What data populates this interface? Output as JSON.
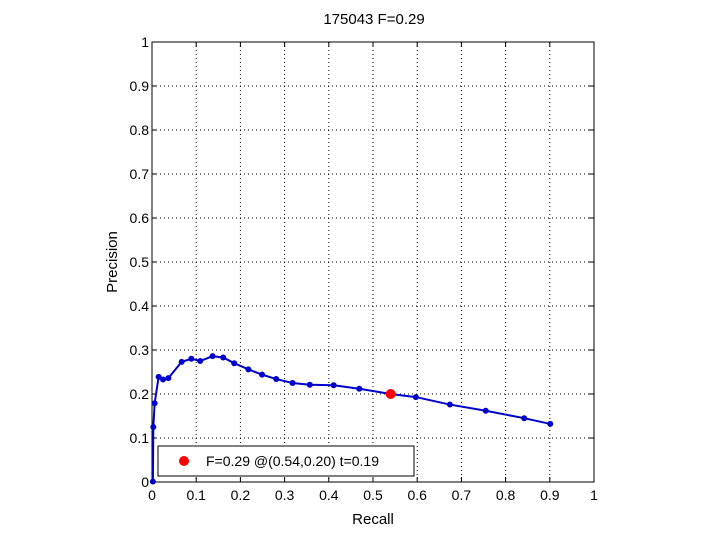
{
  "chart_data": {
    "type": "line",
    "title": "175043 F=0.29",
    "xlabel": "Recall",
    "ylabel": "Precision",
    "xlim": [
      0,
      1
    ],
    "ylim": [
      0,
      1
    ],
    "xticks": [
      "0",
      "0.1",
      "0.2",
      "0.3",
      "0.4",
      "0.5",
      "0.6",
      "0.7",
      "0.8",
      "0.9",
      "1"
    ],
    "yticks": [
      "0",
      "0.1",
      "0.2",
      "0.3",
      "0.4",
      "0.5",
      "0.6",
      "0.7",
      "0.8",
      "0.9",
      "1"
    ],
    "grid": true,
    "series": [
      {
        "color": "#0000cc",
        "points": [
          [
            0.002,
            0.001
          ],
          [
            0.003,
            0.125
          ],
          [
            0.006,
            0.179
          ],
          [
            0.015,
            0.239
          ],
          [
            0.025,
            0.233
          ],
          [
            0.037,
            0.236
          ],
          [
            0.067,
            0.273
          ],
          [
            0.089,
            0.28
          ],
          [
            0.109,
            0.275
          ],
          [
            0.137,
            0.286
          ],
          [
            0.161,
            0.283
          ],
          [
            0.186,
            0.27
          ],
          [
            0.218,
            0.256
          ],
          [
            0.249,
            0.244
          ],
          [
            0.281,
            0.234
          ],
          [
            0.318,
            0.225
          ],
          [
            0.357,
            0.221
          ],
          [
            0.411,
            0.22
          ],
          [
            0.469,
            0.212
          ],
          [
            0.54,
            0.2
          ],
          [
            0.597,
            0.193
          ],
          [
            0.674,
            0.176
          ],
          [
            0.755,
            0.162
          ],
          [
            0.842,
            0.145
          ],
          [
            0.901,
            0.132
          ]
        ]
      }
    ],
    "best_point": {
      "x": 0.54,
      "y": 0.2,
      "color": "#ff0000"
    },
    "legend": {
      "position": "bottom-left",
      "entries": [
        {
          "label": "F=0.29 @(0.54,0.20) t=0.19",
          "color": "#ff0000"
        }
      ]
    }
  }
}
